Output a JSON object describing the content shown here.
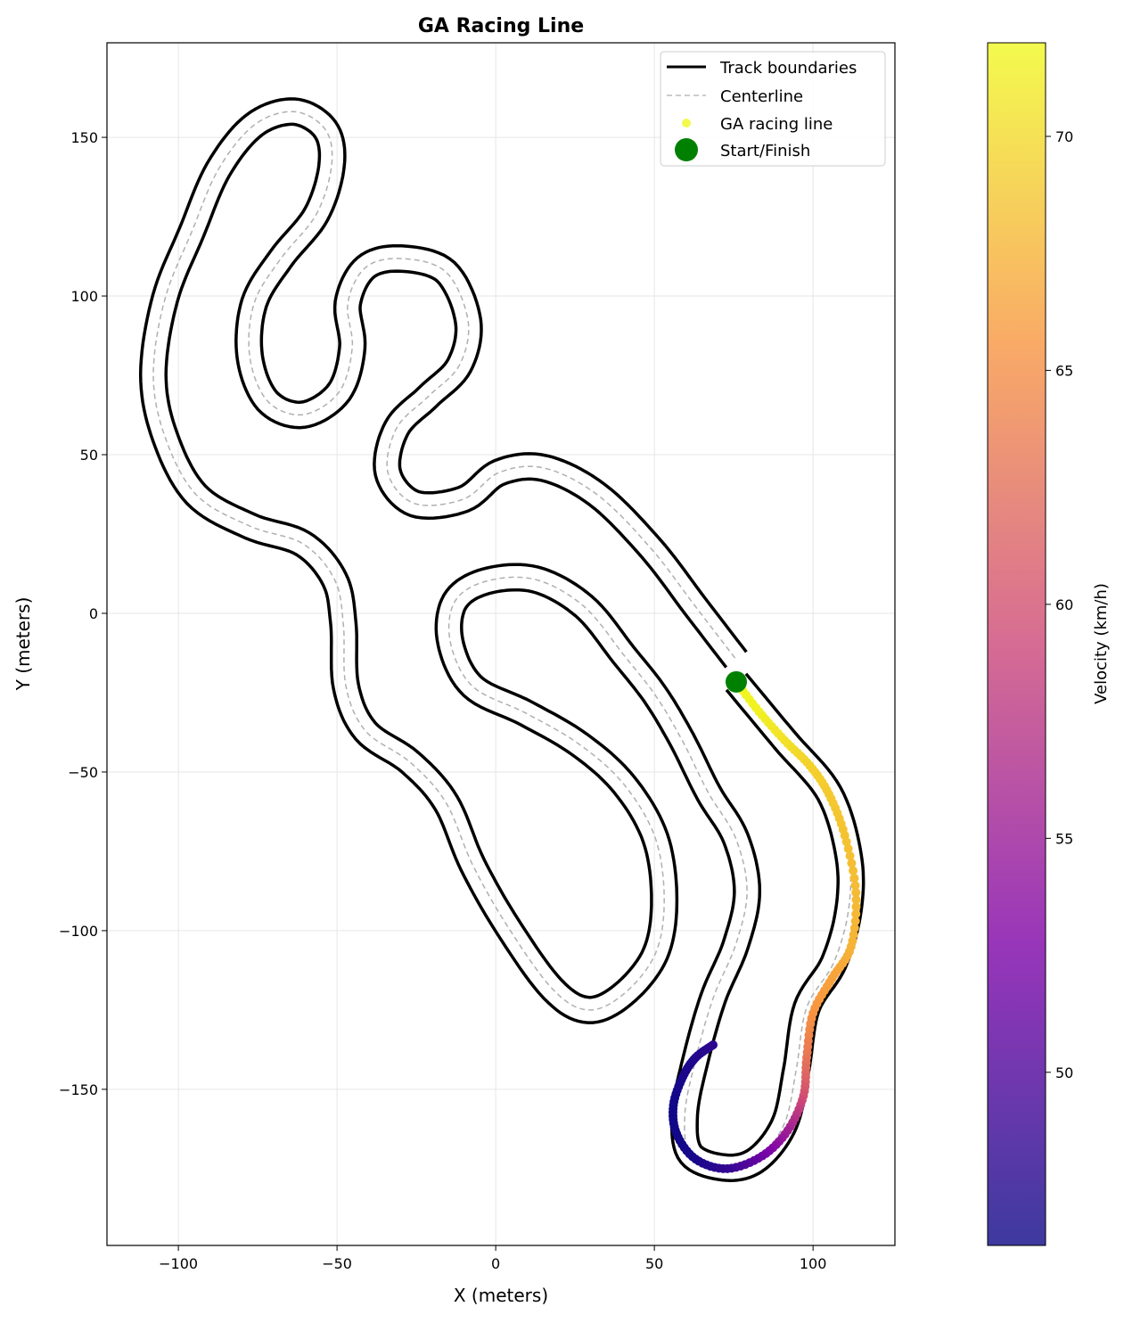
{
  "chart_data": {
    "type": "line",
    "title": "GA Racing Line",
    "xlabel": "X (meters)",
    "ylabel": "Y (meters)",
    "xlim": [
      -122.5,
      125.8
    ],
    "ylim": [
      -199.2,
      179.8
    ],
    "xticks": [
      -100,
      -50,
      0,
      50,
      100
    ],
    "yticks": [
      -150,
      -100,
      -50,
      0,
      50,
      100,
      150
    ],
    "grid": true,
    "legend_position": "top-right",
    "legend": [
      {
        "label": "Track boundaries",
        "style": "solid-black"
      },
      {
        "label": "Centerline",
        "style": "dashed-grey"
      },
      {
        "label": "GA racing line",
        "style": "yellow-dot"
      },
      {
        "label": "Start/Finish",
        "style": "green-dot"
      }
    ],
    "track_half_width": 4,
    "centerline": [
      [
        75.8,
        -21.6
      ],
      [
        91.0,
        -39.9
      ],
      [
        105.1,
        -56.7
      ],
      [
        111.2,
        -76.4
      ],
      [
        111.2,
        -93.3
      ],
      [
        106.5,
        -110.1
      ],
      [
        98.0,
        -124.2
      ],
      [
        94.7,
        -143.8
      ],
      [
        91.0,
        -160.7
      ],
      [
        82.6,
        -171.9
      ],
      [
        72.8,
        -174.7
      ],
      [
        61.5,
        -170.5
      ],
      [
        59.6,
        -157.9
      ],
      [
        62.9,
        -141.0
      ],
      [
        68.5,
        -121.3
      ],
      [
        75.6,
        -104.5
      ],
      [
        79.2,
        -87.6
      ],
      [
        75.6,
        -70.8
      ],
      [
        67.1,
        -56.7
      ],
      [
        58.7,
        -39.9
      ],
      [
        50.3,
        -25.8
      ],
      [
        40.4,
        -13.2
      ],
      [
        27.8,
        2.2
      ],
      [
        12.4,
        10.7
      ],
      [
        -3.1,
        10.1
      ],
      [
        -12.9,
        3.7
      ],
      [
        -14.3,
        -9.0
      ],
      [
        -7.3,
        -23.0
      ],
      [
        9.6,
        -31.5
      ],
      [
        26.4,
        -41.3
      ],
      [
        40.4,
        -53.9
      ],
      [
        50.3,
        -70.8
      ],
      [
        53.1,
        -90.4
      ],
      [
        50.3,
        -107.3
      ],
      [
        40.4,
        -119.9
      ],
      [
        29.2,
        -125.0
      ],
      [
        18.0,
        -118.5
      ],
      [
        3.9,
        -98.9
      ],
      [
        -7.3,
        -79.2
      ],
      [
        -15.7,
        -59.6
      ],
      [
        -27.0,
        -46.9
      ],
      [
        -41.0,
        -37.1
      ],
      [
        -47.2,
        -23.0
      ],
      [
        -48.0,
        -3.4
      ],
      [
        -50.8,
        10.7
      ],
      [
        -60.7,
        21.9
      ],
      [
        -77.5,
        27.5
      ],
      [
        -94.4,
        37.4
      ],
      [
        -104.2,
        55.6
      ],
      [
        -107.9,
        75.3
      ],
      [
        -104.2,
        99.2
      ],
      [
        -95.8,
        120.2
      ],
      [
        -87.4,
        139.9
      ],
      [
        -76.1,
        153.9
      ],
      [
        -63.5,
        158.1
      ],
      [
        -53.7,
        152.5
      ],
      [
        -51.7,
        141.3
      ],
      [
        -56.5,
        125.8
      ],
      [
        -67.7,
        111.8
      ],
      [
        -76.1,
        97.8
      ],
      [
        -77.5,
        80.9
      ],
      [
        -71.9,
        66.9
      ],
      [
        -60.7,
        62.6
      ],
      [
        -49.4,
        69.7
      ],
      [
        -45.2,
        83.7
      ],
      [
        -46.6,
        97.8
      ],
      [
        -41.0,
        109.0
      ],
      [
        -29.8,
        111.8
      ],
      [
        -15.7,
        107.6
      ],
      [
        -8.7,
        92.1
      ],
      [
        -11.5,
        78.1
      ],
      [
        -21.3,
        68.3
      ],
      [
        -31.2,
        58.4
      ],
      [
        -34.0,
        44.4
      ],
      [
        -25.6,
        34.6
      ],
      [
        -10.1,
        36.0
      ],
      [
        1.1,
        44.4
      ],
      [
        15.2,
        45.8
      ],
      [
        32.0,
        37.4
      ],
      [
        48.9,
        20.5
      ],
      [
        62.9,
        2.2
      ],
      [
        75.8,
        -14.6
      ]
    ],
    "racing_line": {
      "x": [
        75.8,
        83,
        91,
        99,
        105,
        110,
        113.5,
        112,
        106,
        100,
        98,
        97,
        92,
        84,
        73,
        63,
        57,
        56,
        59,
        63,
        68.5
      ],
      "y": [
        -21.6,
        -31,
        -40,
        -48,
        -57,
        -70,
        -88,
        -105,
        -115,
        -126,
        -140,
        -152,
        -163,
        -171,
        -175,
        -172,
        -164,
        -155,
        -146,
        -140,
        -136
      ],
      "velocity_kmh": [
        72,
        71.5,
        70.5,
        69.5,
        69,
        68.5,
        68,
        67.5,
        66.5,
        65.5,
        63,
        60,
        55.5,
        52,
        48.5,
        47,
        46.5,
        46.5,
        47,
        47.5,
        48
      ]
    },
    "start_finish": [
      75.8,
      -21.6
    ],
    "colorbar": {
      "label": "Velocity (km/h)",
      "colormap": "plasma",
      "range": [
        46.3,
        72.0
      ],
      "ticks": [
        50,
        55,
        60,
        65,
        70
      ]
    },
    "colors": {
      "boundary": "#000000",
      "centerline": "#b0b0b0",
      "start_finish": "#008000",
      "grid": "#e6e6e6"
    }
  }
}
